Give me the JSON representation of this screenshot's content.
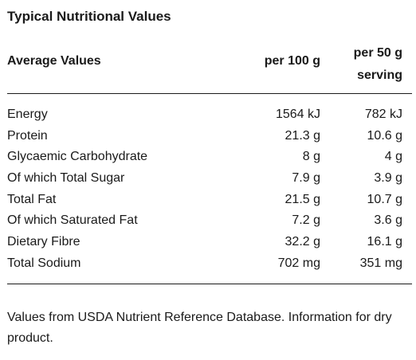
{
  "panel": {
    "title": "Typical Nutritional Values"
  },
  "table": {
    "header": {
      "label": "Average Values",
      "col1": "per 100 g",
      "col2_line1": "per 50 g",
      "col2_line2": "serving"
    },
    "rows": [
      {
        "name": "Energy",
        "per100": "1564 kJ",
        "per50": "782 kJ"
      },
      {
        "name": "Protein",
        "per100": "21.3 g",
        "per50": "10.6 g"
      },
      {
        "name": "Glycaemic Carbohydrate",
        "per100": "8 g",
        "per50": "4 g"
      },
      {
        "name": "Of which Total Sugar",
        "per100": "7.9 g",
        "per50": "3.9 g"
      },
      {
        "name": "Total Fat",
        "per100": "21.5 g",
        "per50": "10.7 g"
      },
      {
        "name": "Of which Saturated Fat",
        "per100": "7.2 g",
        "per50": "3.6 g"
      },
      {
        "name": "Dietary Fibre",
        "per100": "32.2 g",
        "per50": "16.1 g"
      },
      {
        "name": "Total Sodium",
        "per100": "702 mg",
        "per50": "351 mg"
      }
    ]
  },
  "footnote": "Values from USDA Nutrient Reference Database. Information for dry product."
}
